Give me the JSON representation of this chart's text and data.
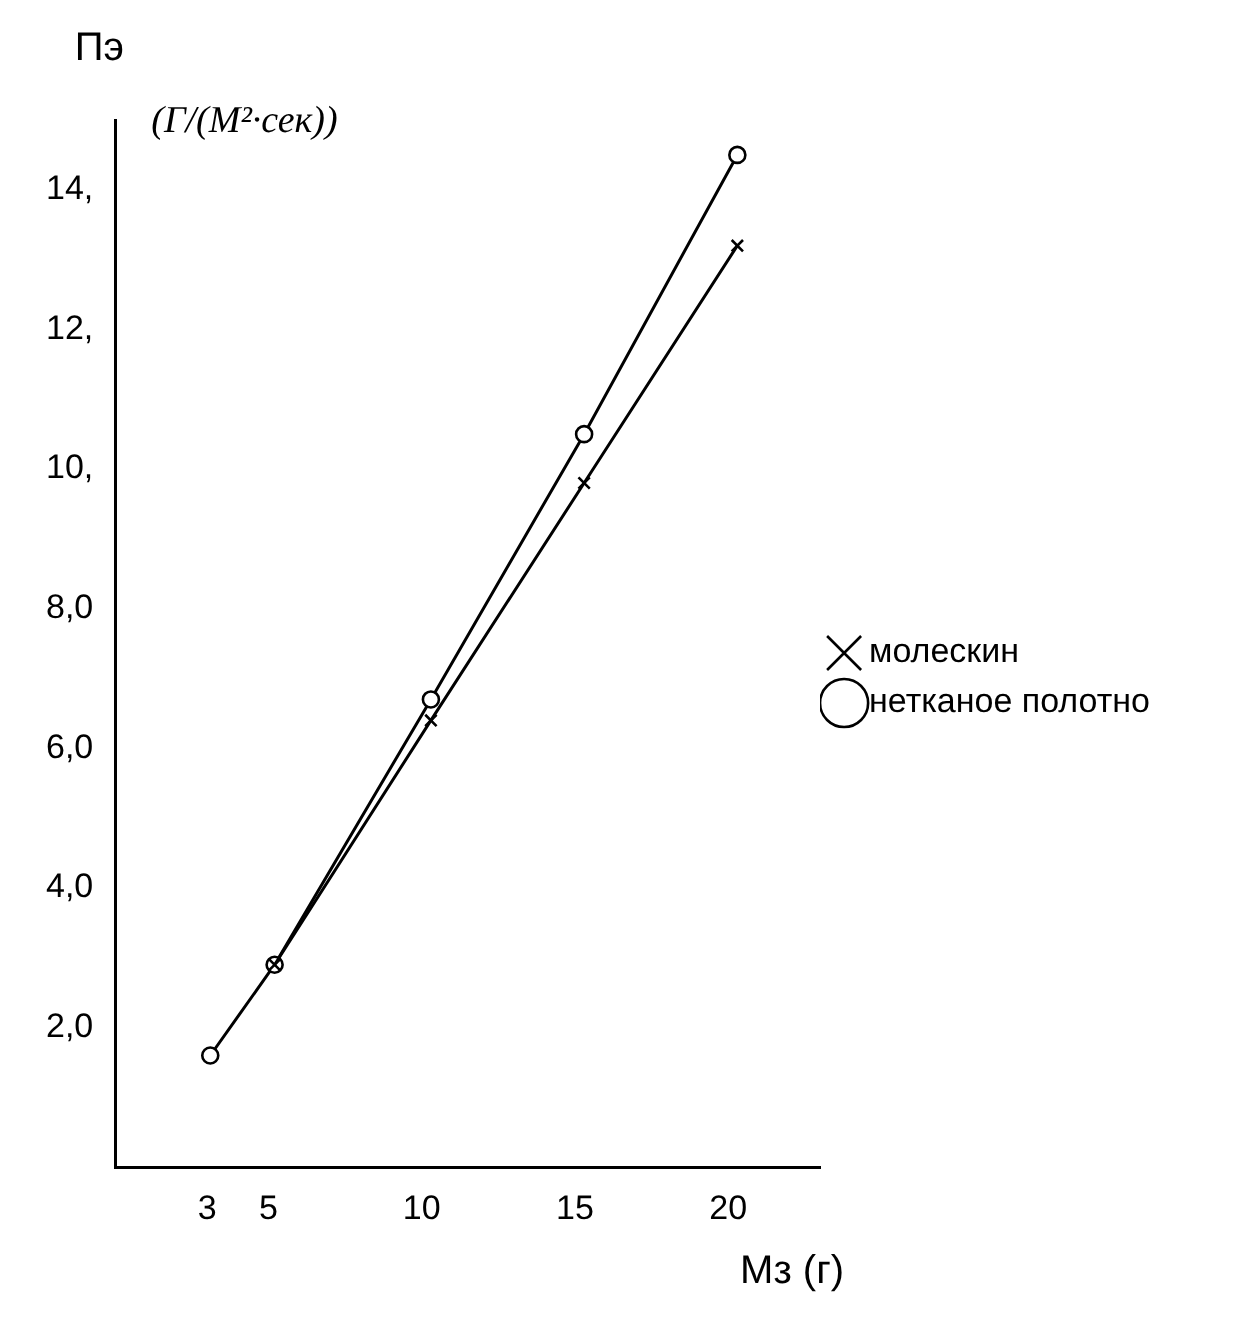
{
  "chart_data": {
    "type": "line",
    "ylabel": "Пэ",
    "xlabel": "Мз (г)",
    "annotations": [
      "(Г/(М²·сек))"
    ],
    "xlim": [
      0,
      23
    ],
    "ylim": [
      0,
      15
    ],
    "xticks": [
      3,
      5,
      10,
      15,
      20
    ],
    "yticks": [
      {
        "value": 2,
        "label": "2,0"
      },
      {
        "value": 4,
        "label": "4,0"
      },
      {
        "value": 6,
        "label": "6,0"
      },
      {
        "value": 8,
        "label": "8,0"
      },
      {
        "value": 10,
        "label": "10,"
      },
      {
        "value": 12,
        "label": "12,"
      },
      {
        "value": 14,
        "label": "14,"
      }
    ],
    "grid": false,
    "legend": "right",
    "line_style": "solid",
    "series": [
      {
        "name": "молескин",
        "color": "#000000",
        "marker": "cross",
        "x": [
          5.2,
          10.3,
          15.3,
          20.3
        ],
        "values": [
          2.9,
          6.4,
          9.8,
          13.2
        ]
      },
      {
        "name": "нетканое полотно",
        "color": "#000000",
        "marker": "circle",
        "x": [
          3.1,
          5.2,
          10.3,
          15.3,
          20.3
        ],
        "values": [
          1.6,
          2.9,
          6.7,
          10.5,
          14.5
        ]
      }
    ]
  }
}
